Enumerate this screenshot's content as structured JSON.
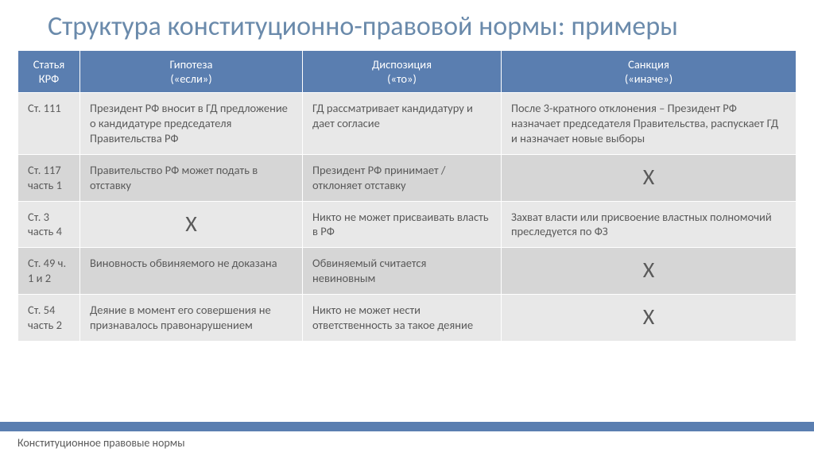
{
  "title": "Структура конституционно-правовой нормы: примеры",
  "table": {
    "columns": [
      {
        "line1": "Статья",
        "line2": "КРФ"
      },
      {
        "line1": "Гипотеза",
        "line2": "(«если»)"
      },
      {
        "line1": "Диспозиция",
        "line2": "(«то»)"
      },
      {
        "line1": "Санкция",
        "line2": "(«иначе»)"
      }
    ],
    "rows": [
      {
        "article": "Ст. 111",
        "hypothesis": "Президент РФ вносит в ГД предложение о кандидатуре председателя Правительства РФ",
        "disposition": "ГД рассматривает кандидатуру и дает согласие",
        "sanction": "После 3-кратного отклонения – Президент РФ назначает председателя Правительства, распускает ГД и назначает новые выборы",
        "h_x": false,
        "d_x": false,
        "s_x": false
      },
      {
        "article": "Ст. 117 часть 1",
        "hypothesis": "Правительство РФ может подать в отставку",
        "disposition": "Президент РФ принимает / отклоняет отставку",
        "sanction": "Х",
        "h_x": false,
        "d_x": false,
        "s_x": true
      },
      {
        "article": "Ст. 3 часть 4",
        "hypothesis": "Х",
        "disposition": "Никто не может присваивать власть в РФ",
        "sanction": "Захват власти или присвоение властных полномочий преследуется по ФЗ",
        "h_x": true,
        "d_x": false,
        "s_x": false
      },
      {
        "article": "Ст. 49 ч. 1 и 2",
        "hypothesis": "Виновность обвиняемого не доказана",
        "disposition": "Обвиняемый считается невиновным",
        "sanction": "Х",
        "h_x": false,
        "d_x": false,
        "s_x": true
      },
      {
        "article": "Ст. 54 часть 2",
        "hypothesis": "Деяние в момент его совершения не признавалось правонарушением",
        "disposition": "Никто не может нести ответственность за такое деяние",
        "sanction": "Х",
        "h_x": false,
        "d_x": false,
        "s_x": true
      }
    ]
  },
  "footer": "Конституционное правовые нормы",
  "colors": {
    "header_bg": "#5a7eb0",
    "title_color": "#6a8aab",
    "row_odd": "#e8e8e8",
    "row_even": "#d6d6d6",
    "text": "#5a5a5a"
  }
}
